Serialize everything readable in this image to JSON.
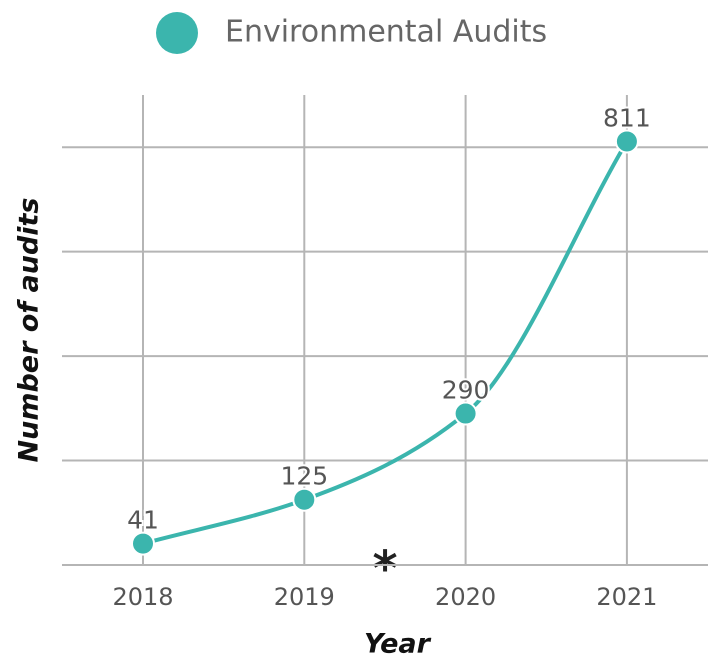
{
  "chart_data": {
    "type": "line",
    "categories": [
      "2018",
      "2019",
      "2020",
      "2021"
    ],
    "series": [
      {
        "name": "Environmental Audits",
        "color": "#3bb5ad",
        "values": [
          41,
          125,
          290,
          811
        ]
      }
    ],
    "ylim": [
      0,
      900
    ],
    "yticks": [
      0,
      200,
      400,
      600,
      800
    ],
    "grid": true,
    "xlabel": "Year",
    "ylabel": "Number of audits",
    "annotations": [
      "*"
    ],
    "legend": "top"
  }
}
